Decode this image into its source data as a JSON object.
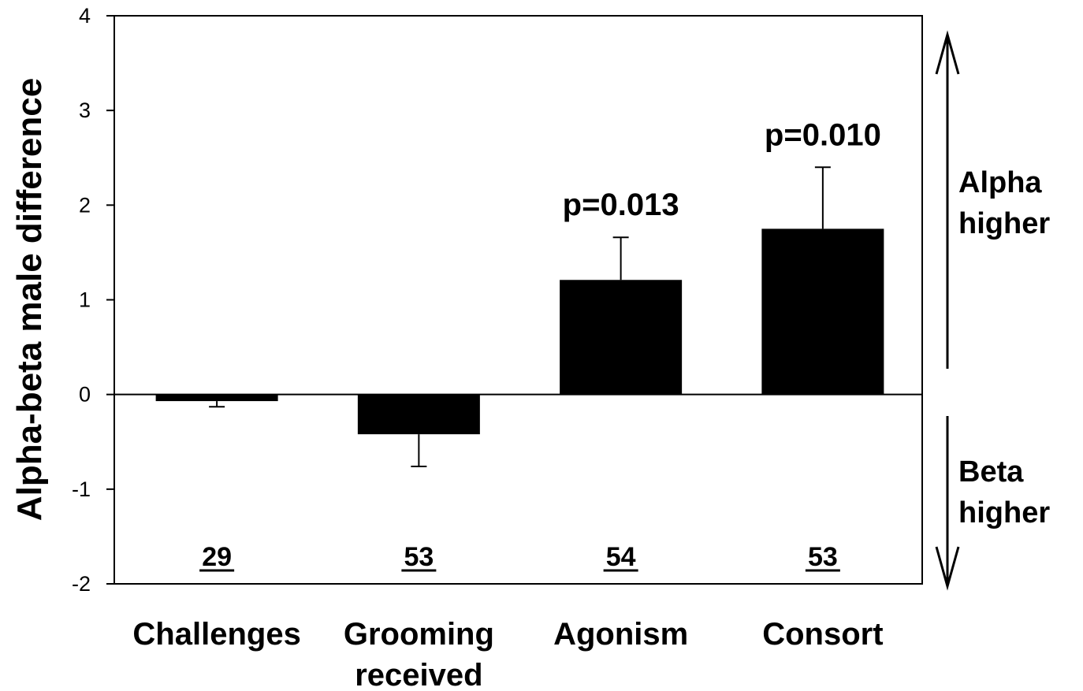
{
  "chart_data": {
    "type": "bar",
    "categories": [
      "Challenges",
      "Grooming received",
      "Agonism",
      "Consort"
    ],
    "category_lines": [
      [
        "Challenges"
      ],
      [
        "Grooming",
        "received"
      ],
      [
        "Agonism"
      ],
      [
        "Consort"
      ]
    ],
    "values": [
      -0.07,
      -0.42,
      1.21,
      1.75
    ],
    "errors": [
      0.06,
      0.34,
      0.45,
      0.65
    ],
    "error_direction": [
      "down",
      "down",
      "up",
      "up"
    ],
    "sample_sizes": [
      "29",
      "53",
      "54",
      "53"
    ],
    "annotations": [
      "",
      "",
      "p=0.013",
      "p=0.010"
    ],
    "ylabel": "Alpha-beta male difference",
    "xlabel": "",
    "ylim": [
      -2,
      4
    ],
    "yticks": [
      "-2",
      "-1",
      "0",
      "1",
      "2",
      "3",
      "4"
    ],
    "bar_color": "#000000",
    "grid": false,
    "side_labels": {
      "up": [
        "Alpha",
        "higher"
      ],
      "down": [
        "Beta",
        "higher"
      ]
    }
  }
}
